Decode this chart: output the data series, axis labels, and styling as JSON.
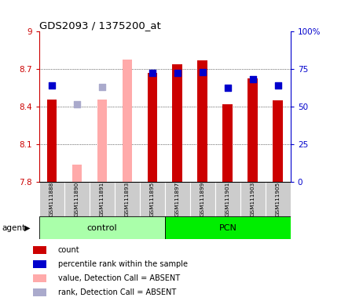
{
  "title": "GDS2093 / 1375200_at",
  "samples": [
    "GSM111888",
    "GSM111890",
    "GSM111891",
    "GSM111893",
    "GSM111895",
    "GSM111897",
    "GSM111899",
    "GSM111901",
    "GSM111903",
    "GSM111905"
  ],
  "groups": [
    {
      "name": "control",
      "start": 0,
      "end": 5,
      "color": "#aaffaa"
    },
    {
      "name": "PCN",
      "start": 5,
      "end": 10,
      "color": "#00ee00"
    }
  ],
  "ymin": 7.8,
  "ymax": 9.0,
  "yticks": [
    7.8,
    8.1,
    8.4,
    8.7,
    9.0
  ],
  "ytick_labels": [
    "7.8",
    "8.1",
    "8.4",
    "8.7",
    "9"
  ],
  "y2ticks": [
    0,
    25,
    50,
    75,
    100
  ],
  "y2tick_labels": [
    "0",
    "25",
    "50",
    "75",
    "100%"
  ],
  "bar_width": 0.4,
  "rank_marker_size": 28,
  "red_values": [
    8.46,
    null,
    8.46,
    null,
    8.67,
    8.74,
    8.77,
    8.42,
    8.63,
    8.45
  ],
  "blue_values": [
    8.57,
    null,
    null,
    null,
    8.67,
    8.67,
    8.68,
    8.55,
    8.62,
    8.57
  ],
  "absent_pink_values": [
    null,
    7.94,
    8.46,
    8.78,
    null,
    null,
    null,
    null,
    null,
    null
  ],
  "absent_blue_values": [
    null,
    8.42,
    8.56,
    null,
    null,
    null,
    null,
    null,
    null,
    null
  ],
  "red_color": "#cc0000",
  "blue_color": "#0000cc",
  "pink_color": "#ffaaaa",
  "light_blue_color": "#aaaacc",
  "left_axis_color": "#cc0000",
  "right_axis_color": "#0000cc",
  "legend_items": [
    {
      "label": "count",
      "color": "#cc0000"
    },
    {
      "label": "percentile rank within the sample",
      "color": "#0000cc"
    },
    {
      "label": "value, Detection Call = ABSENT",
      "color": "#ffaaaa"
    },
    {
      "label": "rank, Detection Call = ABSENT",
      "color": "#aaaacc"
    }
  ]
}
